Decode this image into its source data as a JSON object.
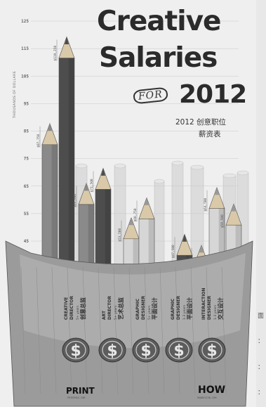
{
  "title_line1": "Creative",
  "title_line2": "Salaries",
  "title_for": "FOR",
  "title_year": "2012",
  "subtitle_line1": "2012 创意职位",
  "subtitle_line2": "薪资表",
  "side_text": [
    "面",
    "：",
    "：",
    "："
  ],
  "brand_left": {
    "name": "PRINT",
    "url": "PRINTMAG.COM"
  },
  "brand_right": {
    "name": "HOW",
    "url": "HOWDESIGN.COM"
  },
  "chart_data": {
    "type": "bar",
    "ylabel": "THOUSANDS OF DOLLARS",
    "ylim": [
      45,
      125
    ],
    "yticks": [
      45,
      55,
      65,
      75,
      85,
      95,
      105,
      115,
      125
    ],
    "categories": [
      "CREATIVE DIRECTOR",
      "ART DIRECTOR",
      "GRAPHIC DESIGNER",
      "GRAPHIC DESIGNER",
      "INTERACTION DESIGNER"
    ],
    "category_sub": [
      "5+ years",
      "5+ years",
      "5+ years",
      "1-3 years",
      "1-3 years"
    ],
    "category_cn": [
      "创意总监",
      "艺术总监",
      "平面设计",
      "平面设计",
      "交互设计"
    ],
    "series": [
      {
        "values": [
          119.25,
          71.5,
          60.75,
          47.5,
          64.5
        ]
      },
      {
        "values": [
          87.75,
          66.0,
          53.5,
          43.5,
          58.5
        ]
      }
    ],
    "value_labels": [
      [
        "$119,250",
        "$87,750"
      ],
      [
        "$71,500",
        "$66,000"
      ],
      [
        "$60,750",
        "$53,500"
      ],
      [
        "$47,500",
        "$43,500"
      ],
      [
        "$64,500",
        "$58,500"
      ]
    ],
    "colors": {
      "dark": "#4d4d4d",
      "mid": "#8a8a8a",
      "light": "#d6d6d6",
      "paper": "#efefef"
    }
  }
}
